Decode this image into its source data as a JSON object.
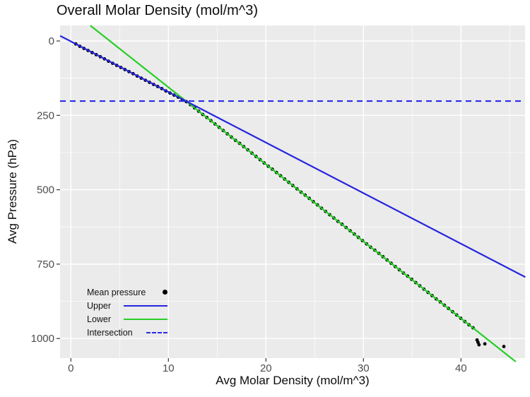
{
  "title": "Overall Molar Density (mol/m^3)",
  "axes": {
    "x": {
      "label": "Avg Molar Density (mol/m^3)",
      "ticks": [
        0,
        10,
        20,
        30,
        40
      ]
    },
    "y": {
      "label": "Avg Pressure (hPa)",
      "ticks": [
        0,
        250,
        500,
        750,
        1000
      ]
    }
  },
  "legend": {
    "items": [
      {
        "label": "Mean pressure",
        "symbol": "point",
        "color": "#000000"
      },
      {
        "label": "Upper",
        "symbol": "line",
        "color": "#2626DD"
      },
      {
        "label": "Lower",
        "symbol": "line",
        "color": "#27CE27"
      },
      {
        "label": "Intersection",
        "symbol": "dashed-line",
        "color": "#2B2BE6"
      }
    ]
  },
  "colors": {
    "panel_bg": "#EBEBEB",
    "grid": "#FFFFFF",
    "upper": "#2626DD",
    "lower": "#27CE27",
    "intersection": "#2B2BE6",
    "points": "#000000",
    "tick_text": "#4D4D4D",
    "tick_mark": "#333333"
  },
  "chart_data": {
    "type": "scatter",
    "title": "Overall Molar Density (mol/m^3)",
    "xlabel": "Avg Molar Density (mol/m^3)",
    "ylabel": "Avg Pressure (hPa)",
    "xlim": [
      -1.1,
      46.6
    ],
    "ylim": [
      1078,
      -52
    ],
    "y_axis_reversed": true,
    "grid": {
      "major_x": [
        0,
        10,
        20,
        30,
        40
      ],
      "minor_x": [
        5,
        15,
        25,
        35,
        45
      ],
      "major_y": [
        0,
        250,
        500,
        750,
        1000
      ],
      "minor_y": [
        125,
        375,
        625,
        875
      ]
    },
    "legend_position": "inside-bottom-left",
    "series": [
      {
        "name": "Mean pressure",
        "type": "scatter",
        "color": "#000000",
        "points": [
          [
            0.5,
            10
          ],
          [
            0.92,
            18
          ],
          [
            1.34,
            25
          ],
          [
            1.76,
            32
          ],
          [
            2.18,
            39
          ],
          [
            2.6,
            46
          ],
          [
            3.02,
            53
          ],
          [
            3.44,
            60
          ],
          [
            3.86,
            68
          ],
          [
            4.28,
            75
          ],
          [
            4.7,
            82
          ],
          [
            5.12,
            89
          ],
          [
            5.54,
            96
          ],
          [
            5.96,
            103
          ],
          [
            6.38,
            110
          ],
          [
            6.8,
            118
          ],
          [
            7.22,
            125
          ],
          [
            7.64,
            132
          ],
          [
            8.06,
            139
          ],
          [
            8.48,
            146
          ],
          [
            8.9,
            153
          ],
          [
            9.32,
            160
          ],
          [
            9.74,
            168
          ],
          [
            10.16,
            175
          ],
          [
            10.58,
            182
          ],
          [
            11.0,
            189
          ],
          [
            11.42,
            196
          ],
          [
            11.84,
            204
          ],
          [
            12.26,
            214
          ],
          [
            12.68,
            225
          ],
          [
            13.1,
            236
          ],
          [
            13.52,
            247
          ],
          [
            13.94,
            257
          ],
          [
            14.36,
            268
          ],
          [
            14.78,
            279
          ],
          [
            15.2,
            290
          ],
          [
            15.62,
            301
          ],
          [
            16.04,
            312
          ],
          [
            16.46,
            323
          ],
          [
            16.88,
            334
          ],
          [
            17.3,
            344
          ],
          [
            17.72,
            355
          ],
          [
            18.14,
            366
          ],
          [
            18.56,
            377
          ],
          [
            18.98,
            388
          ],
          [
            19.4,
            399
          ],
          [
            19.82,
            410
          ],
          [
            20.24,
            421
          ],
          [
            20.66,
            431
          ],
          [
            21.08,
            442
          ],
          [
            21.5,
            453
          ],
          [
            21.92,
            464
          ],
          [
            22.34,
            475
          ],
          [
            22.76,
            486
          ],
          [
            23.18,
            497
          ],
          [
            23.6,
            508
          ],
          [
            24.02,
            518
          ],
          [
            24.44,
            529
          ],
          [
            24.86,
            540
          ],
          [
            25.28,
            551
          ],
          [
            25.7,
            562
          ],
          [
            26.12,
            573
          ],
          [
            26.54,
            584
          ],
          [
            26.96,
            595
          ],
          [
            27.38,
            606
          ],
          [
            27.8,
            616
          ],
          [
            28.22,
            627
          ],
          [
            28.64,
            638
          ],
          [
            29.06,
            649
          ],
          [
            29.48,
            660
          ],
          [
            29.9,
            671
          ],
          [
            30.32,
            682
          ],
          [
            30.74,
            693
          ],
          [
            31.16,
            703
          ],
          [
            31.58,
            714
          ],
          [
            32.0,
            725
          ],
          [
            32.42,
            736
          ],
          [
            32.84,
            747
          ],
          [
            33.26,
            758
          ],
          [
            33.68,
            769
          ],
          [
            34.1,
            780
          ],
          [
            34.52,
            790
          ],
          [
            34.94,
            801
          ],
          [
            35.36,
            812
          ],
          [
            35.78,
            823
          ],
          [
            36.2,
            834
          ],
          [
            36.62,
            845
          ],
          [
            37.04,
            856
          ],
          [
            37.46,
            867
          ],
          [
            37.88,
            877
          ],
          [
            38.3,
            888
          ],
          [
            38.72,
            899
          ],
          [
            39.14,
            910
          ],
          [
            39.56,
            921
          ],
          [
            39.98,
            932
          ],
          [
            40.4,
            943
          ],
          [
            40.82,
            954
          ],
          [
            41.24,
            964
          ],
          [
            41.65,
            1005
          ],
          [
            41.75,
            1013
          ],
          [
            41.85,
            1021
          ],
          [
            42.45,
            1018
          ],
          [
            44.4,
            1027
          ]
        ]
      },
      {
        "name": "Upper",
        "type": "line",
        "color": "#2626DD",
        "slope": 17.0,
        "intercept": 1.4,
        "endpoints": [
          [
            -1.1,
            -17.3
          ],
          [
            46.6,
            793.6
          ]
        ]
      },
      {
        "name": "Lower",
        "type": "line",
        "color": "#27CE27",
        "slope": 25.9,
        "intercept": -103.6,
        "endpoints": [
          [
            1.99,
            -52
          ],
          [
            45.62,
            1078
          ]
        ]
      },
      {
        "name": "Intersection",
        "type": "hline",
        "line_style": "dashed",
        "color": "#2B2BE6",
        "y": 202
      }
    ]
  }
}
